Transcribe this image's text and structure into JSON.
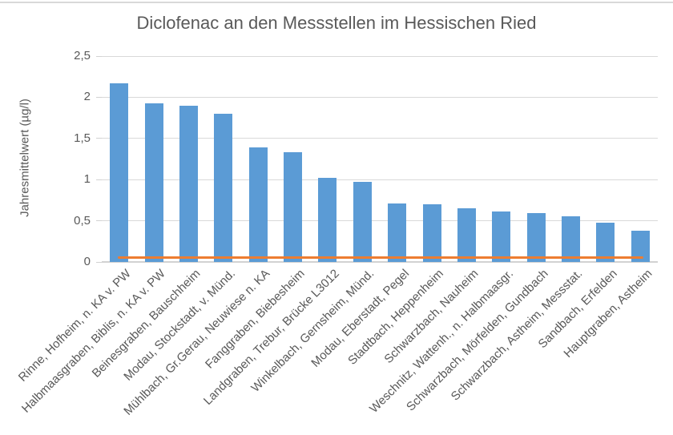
{
  "chart_data": {
    "type": "bar",
    "title": "Diclofenac an den Messstellen im Hessischen Ried",
    "ylabel": "Jahresmittelwert (µg/l)",
    "xlabel": "",
    "ylim": [
      0,
      2.5
    ],
    "grid": true,
    "legend": "none",
    "title_color": "#595959",
    "axis_text_color": "#595959",
    "gridline_color": "#d9d9d9",
    "bar_color": "#5B9BD5",
    "yticks": [
      {
        "value": 0,
        "label": "0"
      },
      {
        "value": 0.5,
        "label": "0,5"
      },
      {
        "value": 1,
        "label": "1"
      },
      {
        "value": 1.5,
        "label": "1,5"
      },
      {
        "value": 2,
        "label": "2"
      },
      {
        "value": 2.5,
        "label": "2,5"
      }
    ],
    "categories": [
      "Rinne, Hofheim, n. KA v. PW",
      "Halbmaasgraben, Biblis, n. KA v. PW",
      "Beinesgraben, Bauschheim",
      "Modau, Stockstadt, v. Münd.",
      "Mühlbach, Gr.Gerau, Neuwiese n. KA",
      "Fanggraben, Biebesheim",
      "Landgraben, Trebur, Brücke L3012",
      "Winkelbach, Gernsheim, Münd.",
      "Modau, Eberstadt, Pegel",
      "Stadtbach, Heppenheim",
      "Schwarzbach, Nauheim",
      "Weschnitz, Wattenh., n. Halbmaasgr.",
      "Schwarzbach, Mörfelden, Gundbach",
      "Schwarzbach, Astheim, Messstat.",
      "Sandbach, Erfelden",
      "Hauptgraben, Astheim"
    ],
    "values": [
      2.17,
      1.93,
      1.9,
      1.8,
      1.39,
      1.33,
      1.02,
      0.97,
      0.71,
      0.7,
      0.65,
      0.61,
      0.59,
      0.55,
      0.48,
      0.38
    ],
    "threshold_line": {
      "value": 0.05,
      "color": "#ED7D31"
    }
  }
}
